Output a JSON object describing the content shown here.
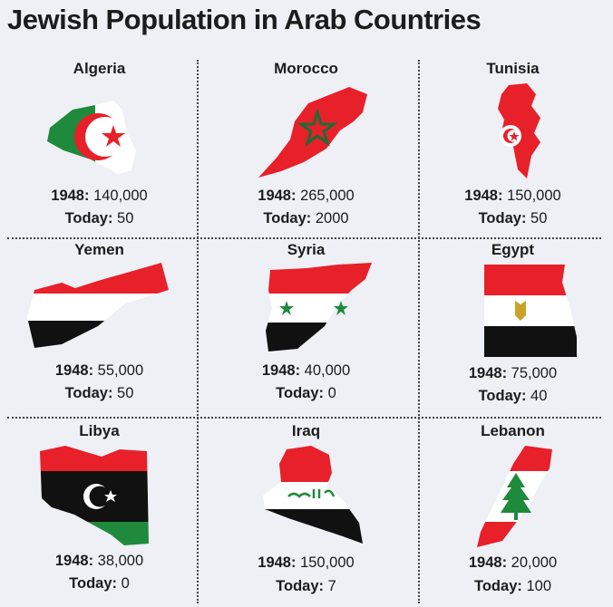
{
  "title": "Jewish Population in Arab Countries",
  "labels": {
    "y1948": "1948:",
    "today": "Today:"
  },
  "countries": [
    {
      "name": "Algeria",
      "y1948": "140,000",
      "today": "50"
    },
    {
      "name": "Morocco",
      "y1948": "265,000",
      "today": "2000"
    },
    {
      "name": "Tunisia",
      "y1948": "150,000",
      "today": "50"
    },
    {
      "name": "Yemen",
      "y1948": "55,000",
      "today": "50"
    },
    {
      "name": "Syria",
      "y1948": "40,000",
      "today": "0"
    },
    {
      "name": "Egypt",
      "y1948": "75,000",
      "today": "40"
    },
    {
      "name": "Libya",
      "y1948": "38,000",
      "today": "0"
    },
    {
      "name": "Iraq",
      "y1948": "150,000",
      "today": "7"
    },
    {
      "name": "Lebanon",
      "y1948": "20,000",
      "today": "100"
    }
  ],
  "colors": {
    "red": "#e8202a",
    "green": "#1f8a3c",
    "black": "#111111",
    "white": "#ffffff"
  }
}
